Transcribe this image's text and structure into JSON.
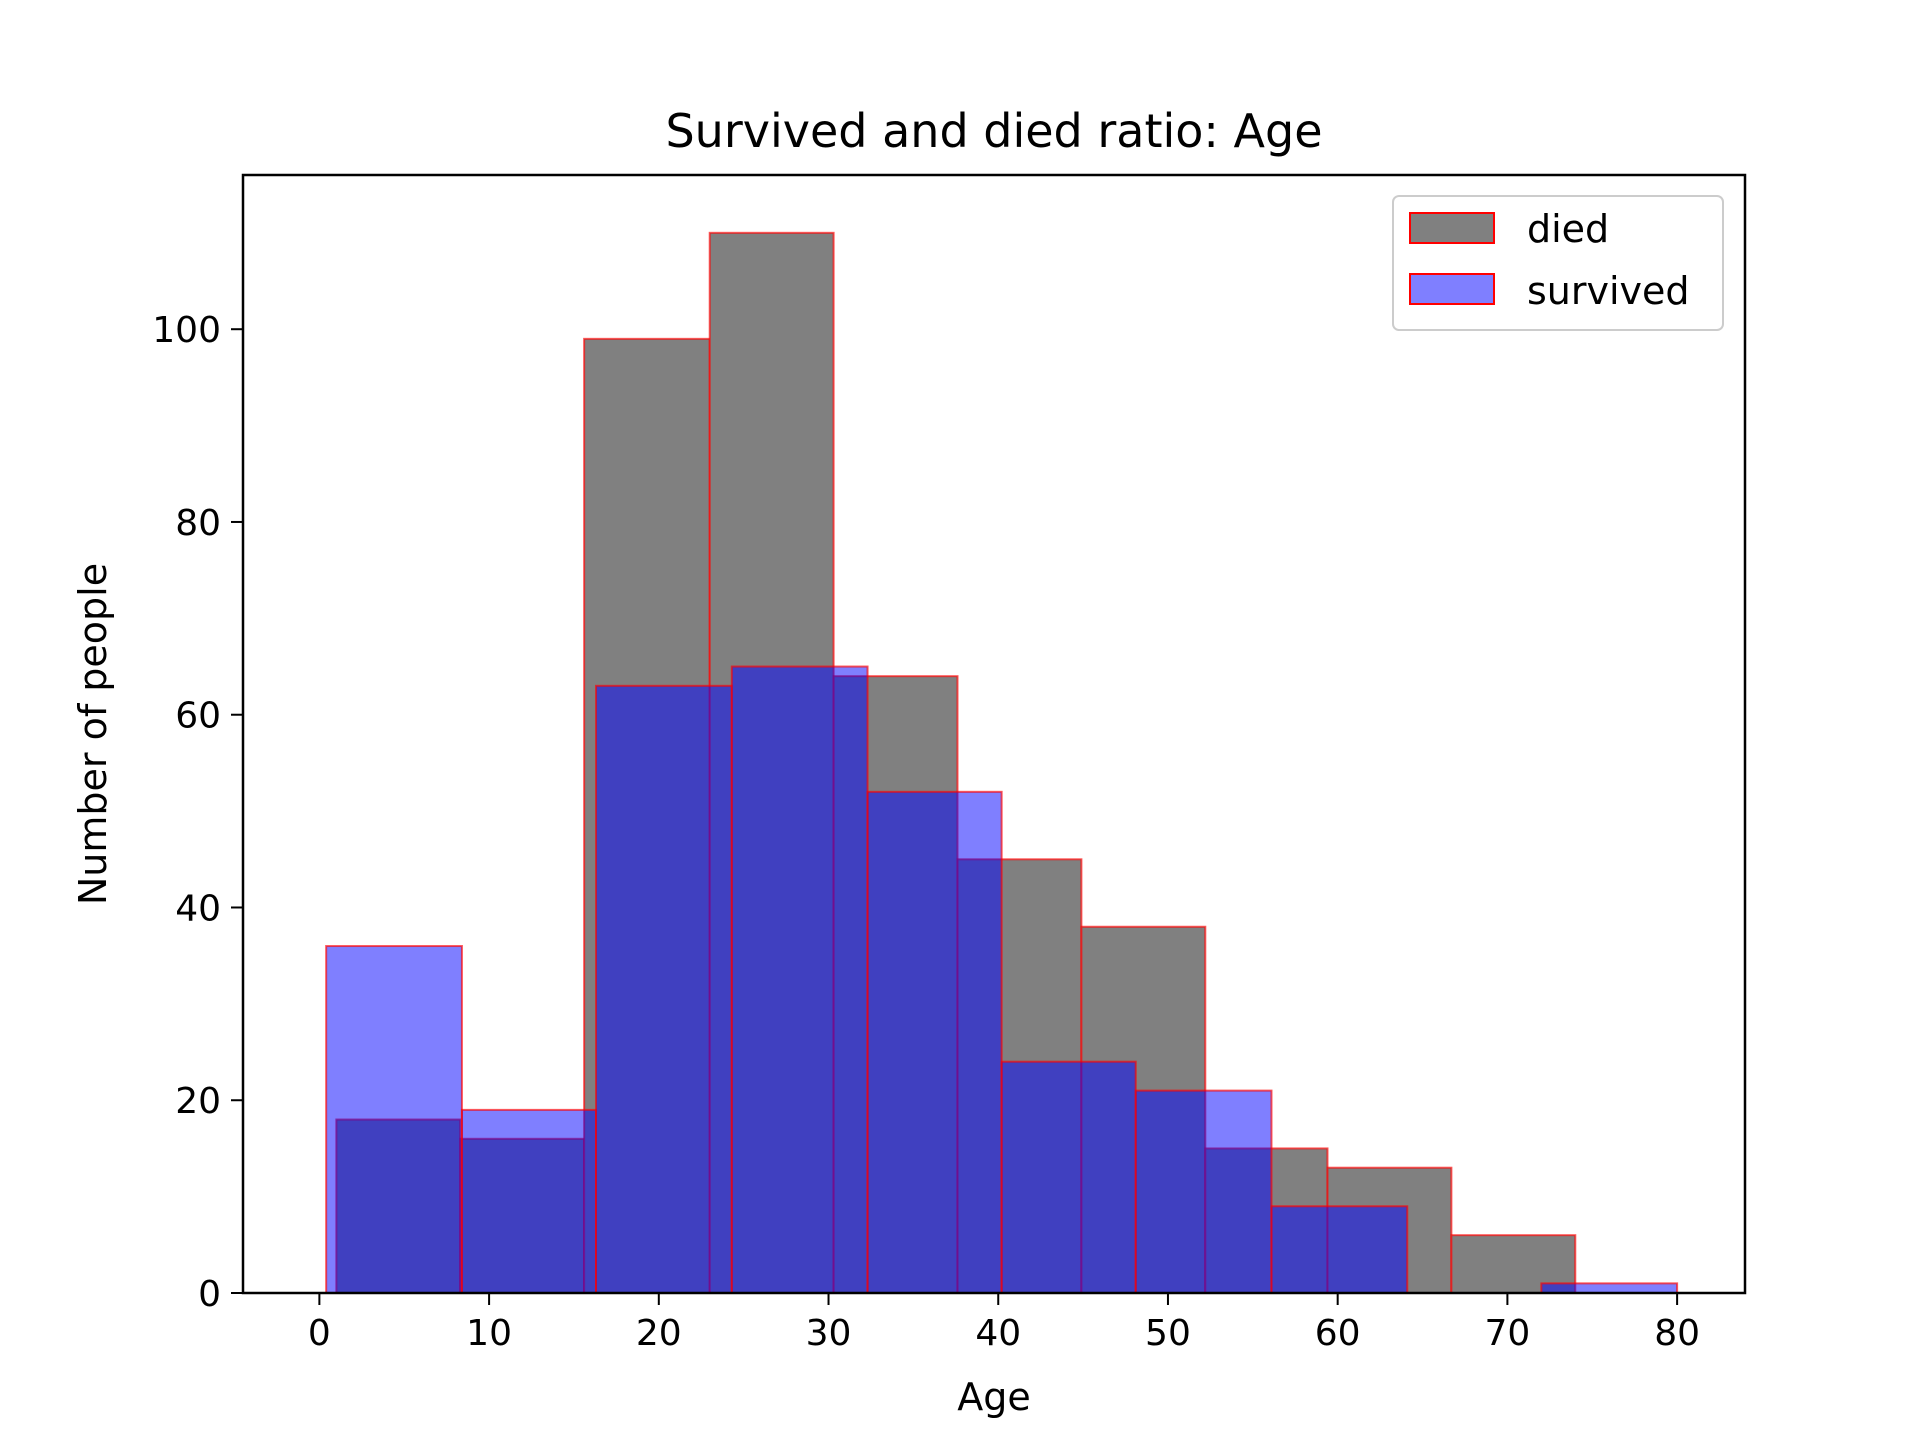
{
  "chart_data": {
    "type": "bar",
    "title": "Survived and died ratio:  Age",
    "xlabel": "Age",
    "ylabel": "Number of people",
    "xlim": [
      -4.5,
      84
    ],
    "ylim": [
      0,
      116
    ],
    "xticks": [
      0,
      10,
      20,
      30,
      40,
      50,
      60,
      70,
      80
    ],
    "yticks": [
      0,
      20,
      40,
      60,
      80,
      100
    ],
    "grid": false,
    "legend_position": "top-right",
    "edge_color": "#ff0000",
    "series": [
      {
        "name": "died",
        "color": "#808080",
        "bins": [
          {
            "x0": 1.0,
            "x1": 8.3,
            "value": 18
          },
          {
            "x0": 8.3,
            "x1": 15.6,
            "value": 16
          },
          {
            "x0": 15.6,
            "x1": 23.0,
            "value": 99
          },
          {
            "x0": 23.0,
            "x1": 30.3,
            "value": 110
          },
          {
            "x0": 30.3,
            "x1": 37.6,
            "value": 64
          },
          {
            "x0": 37.6,
            "x1": 44.9,
            "value": 45
          },
          {
            "x0": 44.9,
            "x1": 52.2,
            "value": 38
          },
          {
            "x0": 52.2,
            "x1": 59.4,
            "value": 15
          },
          {
            "x0": 59.4,
            "x1": 66.7,
            "value": 13
          },
          {
            "x0": 66.7,
            "x1": 74.0,
            "value": 6
          }
        ]
      },
      {
        "name": "survived",
        "color": "#0000ff",
        "bins": [
          {
            "x0": 0.4,
            "x1": 8.4,
            "value": 36
          },
          {
            "x0": 8.4,
            "x1": 16.3,
            "value": 19
          },
          {
            "x0": 16.3,
            "x1": 24.3,
            "value": 63
          },
          {
            "x0": 24.3,
            "x1": 32.3,
            "value": 65
          },
          {
            "x0": 32.3,
            "x1": 40.2,
            "value": 52
          },
          {
            "x0": 40.2,
            "x1": 48.1,
            "value": 24
          },
          {
            "x0": 48.1,
            "x1": 56.1,
            "value": 21
          },
          {
            "x0": 56.1,
            "x1": 64.1,
            "value": 9
          },
          {
            "x0": 64.1,
            "x1": 72.0,
            "value": 0
          },
          {
            "x0": 72.0,
            "x1": 80.0,
            "value": 1
          }
        ]
      }
    ]
  }
}
